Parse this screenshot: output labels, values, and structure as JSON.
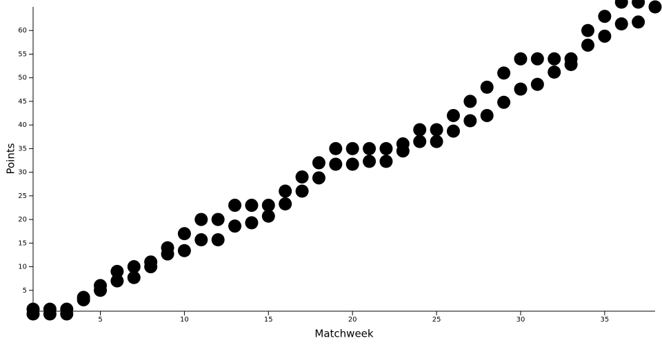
{
  "chart_data": {
    "type": "scatter",
    "x_label": "Matchweek",
    "y_label": "Points",
    "x": [
      1,
      2,
      3,
      4,
      5,
      6,
      7,
      8,
      9,
      10,
      11,
      12,
      13,
      14,
      15,
      16,
      17,
      18,
      19,
      20,
      21,
      22,
      23,
      24,
      25,
      26,
      27,
      28,
      29,
      30,
      31,
      32,
      33,
      34,
      35,
      36,
      37,
      38
    ],
    "series": [
      {
        "color": "#000000",
        "values": [
          1,
          1,
          1,
          3.5,
          6,
          9,
          10,
          11,
          14,
          17,
          20,
          20,
          23,
          23,
          23,
          26,
          29,
          32,
          35,
          35,
          35,
          35,
          36,
          39,
          39,
          42,
          45,
          48,
          51,
          54,
          54,
          54,
          54,
          60,
          63,
          66,
          66,
          65
        ]
      },
      {
        "color": "#000000",
        "values": [
          0,
          0,
          0,
          3,
          5,
          7,
          7.7,
          10,
          12.7,
          13.4,
          15.7,
          15.7,
          18.6,
          19.3,
          20.7,
          23.3,
          26,
          28.8,
          31.7,
          31.7,
          32.3,
          32.3,
          34.5,
          36.5,
          36.5,
          38.7,
          40.9,
          42,
          44.8,
          47.6,
          48.6,
          51.2,
          52.8,
          56.9,
          58.8,
          61.4,
          61.8,
          null
        ]
      }
    ],
    "xlim": [
      1,
      38
    ],
    "ylim": [
      0,
      65
    ],
    "xticks": [
      5,
      10,
      15,
      20,
      25,
      30,
      35
    ],
    "yticks": [
      5,
      10,
      15,
      20,
      25,
      30,
      35,
      40,
      45,
      50,
      55,
      60
    ]
  }
}
